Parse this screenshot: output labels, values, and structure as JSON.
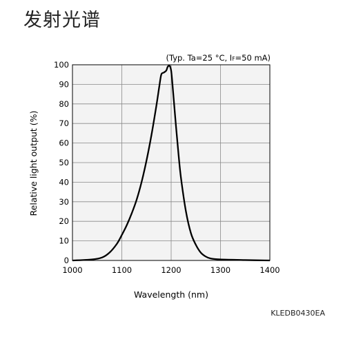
{
  "page": {
    "title": "发射光谱",
    "doc_code": "KLEDB0430EA"
  },
  "chart_data": {
    "type": "line",
    "title": "",
    "conditions": {
      "prefix": "(Typ. Ta=25 °C, I",
      "subscript": "F",
      "suffix": "=50 mA)"
    },
    "xlabel": "Wavelength (nm)",
    "ylabel": "Relative light output (%)",
    "xlim": [
      1000,
      1400
    ],
    "ylim": [
      0,
      100
    ],
    "xticks": [
      1000,
      1100,
      1200,
      1300,
      1400
    ],
    "yticks": [
      0,
      10,
      20,
      30,
      40,
      50,
      60,
      70,
      80,
      90,
      100
    ],
    "grid": true,
    "colors": {
      "background": "#f3f3f3",
      "grid": "#888888",
      "line": "#000000"
    },
    "series": [
      {
        "name": "",
        "x": [
          1000,
          1040,
          1060,
          1075,
          1090,
          1100,
          1110,
          1120,
          1130,
          1140,
          1150,
          1160,
          1170,
          1176,
          1180,
          1185,
          1190,
          1193,
          1196,
          1198,
          1200,
          1202,
          1205,
          1210,
          1215,
          1220,
          1230,
          1240,
          1250,
          1260,
          1270,
          1280,
          1300,
          1350,
          1400
        ],
        "y": [
          0,
          0.5,
          1.5,
          4,
          8.5,
          13,
          18,
          24,
          31,
          40,
          51,
          64,
          79,
          89,
          95,
          96,
          97,
          99,
          99.5,
          99,
          97,
          92,
          83,
          68,
          54,
          42,
          25,
          14,
          8,
          4,
          2,
          1,
          0.5,
          0.2,
          0
        ]
      }
    ]
  }
}
